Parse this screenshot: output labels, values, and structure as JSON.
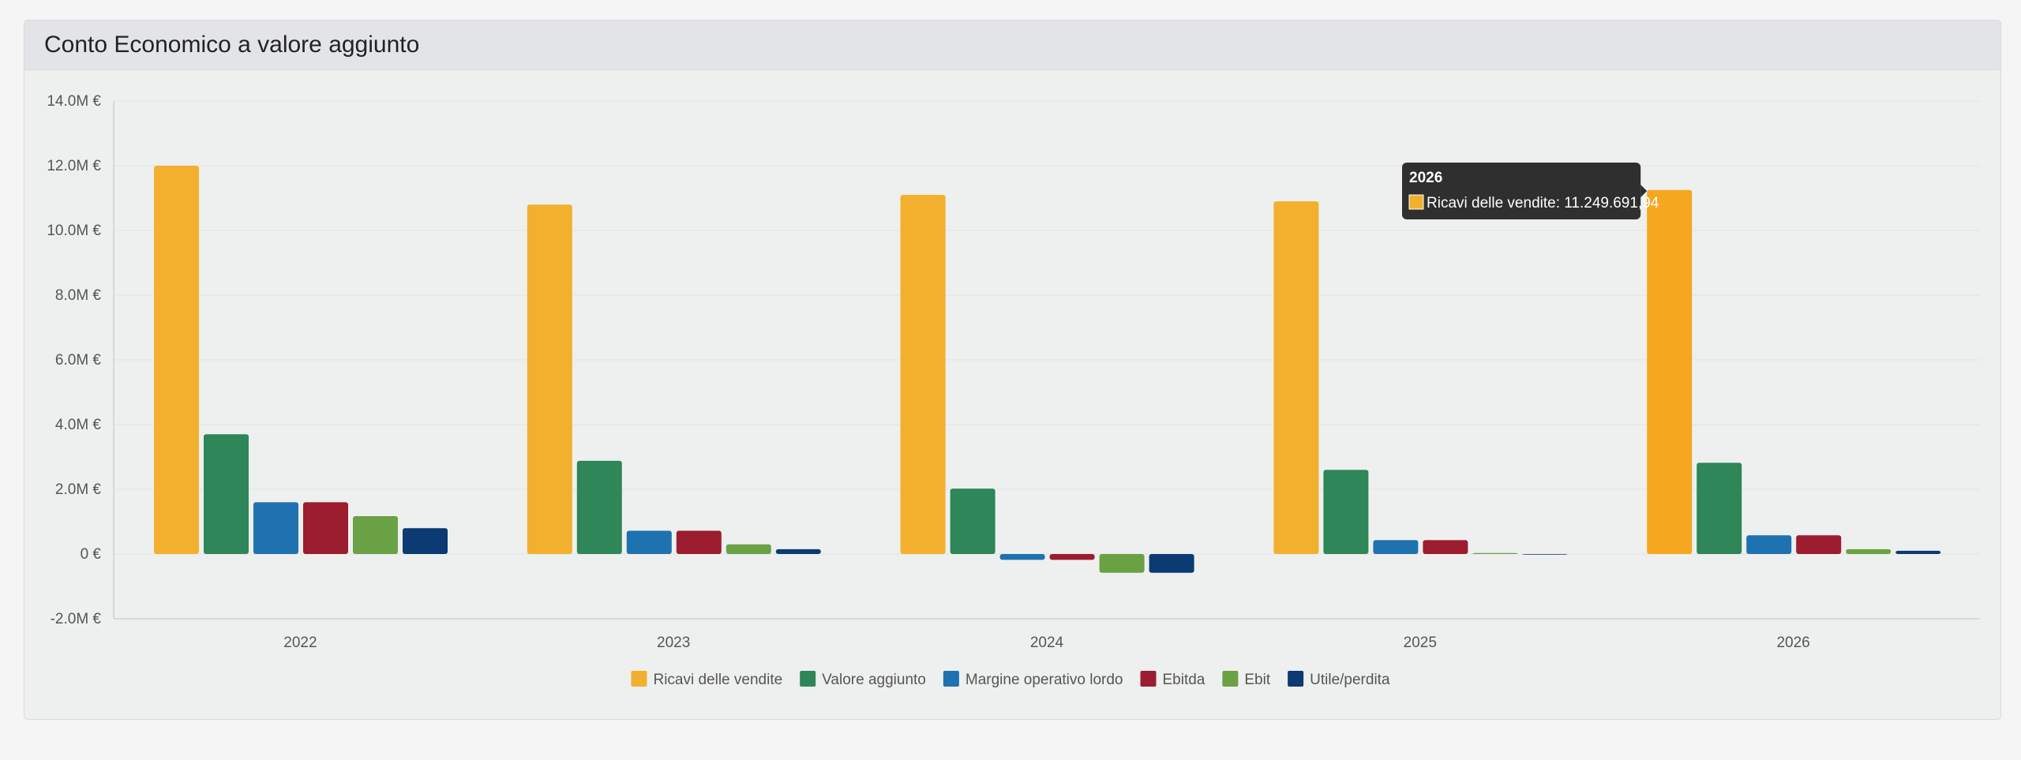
{
  "card": {
    "title": "Conto Economico a valore aggiunto"
  },
  "chart_data": {
    "type": "bar",
    "categories": [
      "2022",
      "2023",
      "2024",
      "2025",
      "2026"
    ],
    "series": [
      {
        "name": "Ricavi delle vendite",
        "color": "#f2b02e",
        "values": [
          12000000,
          10800000,
          11100000,
          10900000,
          11249691.94
        ]
      },
      {
        "name": "Valore aggiunto",
        "color": "#2e8659",
        "values": [
          3700000,
          2880000,
          2020000,
          2600000,
          2820000
        ]
      },
      {
        "name": "Margine operativo lordo",
        "color": "#1f72b0",
        "values": [
          1600000,
          720000,
          -180000,
          430000,
          580000
        ]
      },
      {
        "name": "Ebitda",
        "color": "#9c1d2f",
        "values": [
          1600000,
          720000,
          -180000,
          430000,
          580000
        ]
      },
      {
        "name": "Ebit",
        "color": "#6aa144",
        "values": [
          1170000,
          300000,
          -580000,
          30000,
          150000
        ]
      },
      {
        "name": "Utile/perdita",
        "color": "#0c3a72",
        "values": [
          800000,
          150000,
          -580000,
          0,
          100000
        ]
      }
    ],
    "ylim": [
      -2000000,
      14000000
    ],
    "yticks": [
      -2000000,
      0,
      2000000,
      4000000,
      6000000,
      8000000,
      10000000,
      12000000,
      14000000
    ],
    "ytick_labels": [
      "-2.0M €",
      "0 €",
      "2.0M €",
      "4.0M €",
      "6.0M €",
      "8.0M €",
      "10.0M €",
      "12.0M €",
      "14.0M €"
    ],
    "grid": true,
    "legend_position": "bottom-center",
    "tooltip": {
      "title": "2026",
      "label": "Ricavi delle vendite: 11.249.691,94",
      "series_index": 0,
      "category_index": 4
    }
  }
}
